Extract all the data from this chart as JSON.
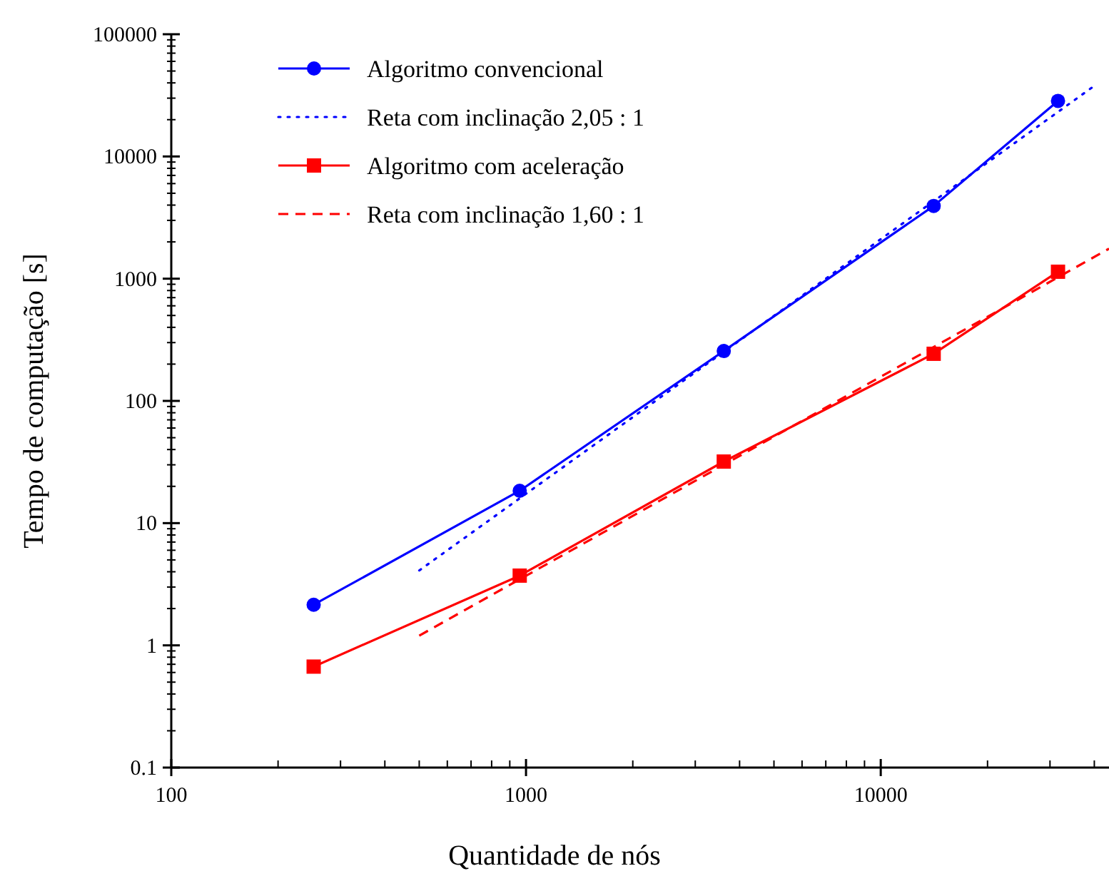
{
  "chart_data": {
    "type": "line",
    "xlabel": "Quantidade de nós",
    "ylabel": "Tempo de computação [s]",
    "log": "xy",
    "xlim": [
      100,
      44000
    ],
    "ylim": [
      0.1,
      100000
    ],
    "xticks": [
      100,
      1000,
      10000
    ],
    "yticks": [
      0.1,
      1,
      10,
      100,
      1000,
      10000,
      100000
    ],
    "grid": false,
    "legend": "top left",
    "series": [
      {
        "name": "Algoritmo convencional",
        "color": "#0000ff",
        "marker": "circle",
        "line_style": "solid",
        "x": [
          252,
          960,
          3610,
          14100,
          31600
        ],
        "values": [
          2.15,
          18.4,
          256,
          3940,
          28500
        ]
      },
      {
        "name": "Reta com inclinação 2,05 : 1",
        "color": "#0000ff",
        "marker": "none",
        "line_style": "dotted",
        "x": [
          500,
          40800
        ],
        "values": [
          4.1,
          39400
        ]
      },
      {
        "name": "Algoritmo com aceleração",
        "color": "#ff0000",
        "marker": "square",
        "line_style": "solid",
        "x": [
          252,
          960,
          3610,
          14100,
          31600
        ],
        "values": [
          0.67,
          3.72,
          31.9,
          243,
          1140
        ]
      },
      {
        "name": "Reta com inclinação 1,60 : 1",
        "color": "#ff0000",
        "marker": "none",
        "line_style": "dashed",
        "x": [
          500,
          44000
        ],
        "values": [
          1.2,
          1760
        ]
      }
    ]
  }
}
